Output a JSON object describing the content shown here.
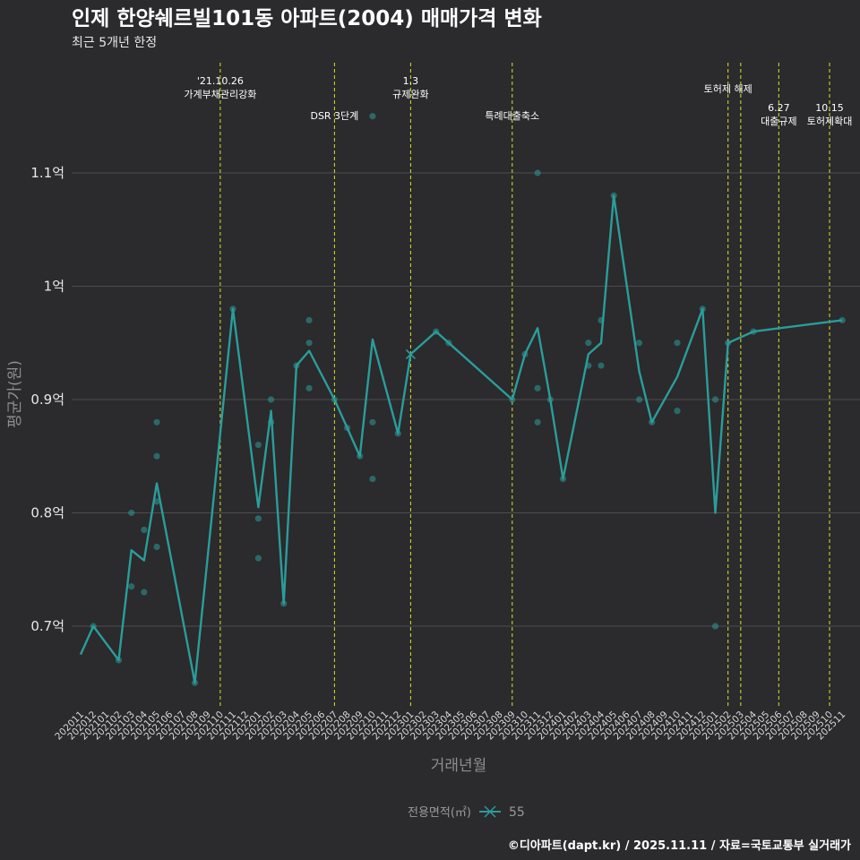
{
  "title": "인제 한양쉐르빌101동 아파트(2004) 매매가격 변화",
  "subtitle": "최근 5개년 한정",
  "caption": "©디아파트(dapt.kr) / 2025.11.11 / 자료=국토교통부 실거래가",
  "colors": {
    "background": "#2b2a2c",
    "series": "#2a9d9b",
    "event_line": "#c8d22a",
    "grid": "#4d4c4f"
  },
  "chart_data": {
    "type": "line",
    "title": "인제 한양쉐르빌101동 아파트(2004) 매매가격 변화",
    "xlabel": "거래년월",
    "ylabel": "평균가(원)",
    "ylim": [
      0.625,
      1.16
    ],
    "yunit": "억",
    "y_ticks": [
      0.7,
      0.8,
      0.9,
      1.0,
      1.1
    ],
    "y_tick_labels": [
      "0.7억",
      "0.8억",
      "0.9억",
      "1억",
      "1.1억"
    ],
    "x_ticks": [
      "202011",
      "202012",
      "202101",
      "202102",
      "202103",
      "202104",
      "202105",
      "202106",
      "202107",
      "202108",
      "202109",
      "202110",
      "202111",
      "202112",
      "202201",
      "202202",
      "202203",
      "202204",
      "202205",
      "202206",
      "202207",
      "202208",
      "202209",
      "202210",
      "202211",
      "202212",
      "202301",
      "202302",
      "202303",
      "202304",
      "202305",
      "202306",
      "202307",
      "202308",
      "202309",
      "202310",
      "202311",
      "202312",
      "202401",
      "202402",
      "202403",
      "202404",
      "202405",
      "202406",
      "202407",
      "202408",
      "202409",
      "202410",
      "202411",
      "202412",
      "202501",
      "202502",
      "202503",
      "202504",
      "202505",
      "202506",
      "202507",
      "202508",
      "202509",
      "202510",
      "202511"
    ],
    "legend": {
      "title": "전용면적(㎡)",
      "entries": [
        "55"
      ],
      "position": "bottom"
    },
    "series": [
      {
        "name": "55",
        "line": [
          [
            "202011",
            0.675
          ],
          [
            "202012",
            0.7
          ],
          [
            "202102",
            0.67
          ],
          [
            "202103",
            0.767
          ],
          [
            "202104",
            0.758
          ],
          [
            "202105",
            0.826
          ],
          [
            "202108",
            0.65
          ],
          [
            "202111",
            0.98
          ],
          [
            "202201",
            0.805
          ],
          [
            "202202",
            0.89
          ],
          [
            "202203",
            0.72
          ],
          [
            "202204",
            0.93
          ],
          [
            "202205",
            0.943
          ],
          [
            "202207",
            0.9
          ],
          [
            "202208",
            0.875
          ],
          [
            "202209",
            0.85
          ],
          [
            "202210",
            0.953
          ],
          [
            "202212",
            0.87
          ],
          [
            "202301",
            0.94
          ],
          [
            "202303",
            0.96
          ],
          [
            "202304",
            0.95
          ],
          [
            "202309",
            0.9
          ],
          [
            "202310",
            0.94
          ],
          [
            "202311",
            0.963
          ],
          [
            "202312",
            0.9
          ],
          [
            "202401",
            0.83
          ],
          [
            "202403",
            0.94
          ],
          [
            "202404",
            0.95
          ],
          [
            "202405",
            1.08
          ],
          [
            "202407",
            0.925
          ],
          [
            "202408",
            0.88
          ],
          [
            "202410",
            0.92
          ],
          [
            "202412",
            0.98
          ],
          [
            "202501",
            0.8
          ],
          [
            "202502",
            0.95
          ],
          [
            "202504",
            0.96
          ],
          [
            "202511",
            0.97
          ]
        ],
        "points": [
          [
            "202012",
            0.7
          ],
          [
            "202102",
            0.67
          ],
          [
            "202103",
            0.735
          ],
          [
            "202103",
            0.8
          ],
          [
            "202104",
            0.73
          ],
          [
            "202104",
            0.785
          ],
          [
            "202105",
            0.77
          ],
          [
            "202105",
            0.81
          ],
          [
            "202105",
            0.85
          ],
          [
            "202105",
            0.88
          ],
          [
            "202108",
            0.65
          ],
          [
            "202111",
            0.98
          ],
          [
            "202201",
            0.76
          ],
          [
            "202201",
            0.795
          ],
          [
            "202201",
            0.86
          ],
          [
            "202202",
            0.88
          ],
          [
            "202202",
            0.9
          ],
          [
            "202203",
            0.72
          ],
          [
            "202204",
            0.93
          ],
          [
            "202205",
            0.91
          ],
          [
            "202205",
            0.95
          ],
          [
            "202205",
            0.97
          ],
          [
            "202207",
            0.9
          ],
          [
            "202208",
            0.875
          ],
          [
            "202209",
            0.85
          ],
          [
            "202210",
            0.83
          ],
          [
            "202210",
            0.88
          ],
          [
            "202210",
            1.15
          ],
          [
            "202212",
            0.87
          ],
          [
            "202303",
            0.96
          ],
          [
            "202304",
            0.95
          ],
          [
            "202309",
            0.9
          ],
          [
            "202310",
            0.94
          ],
          [
            "202311",
            0.88
          ],
          [
            "202311",
            0.91
          ],
          [
            "202311",
            1.1
          ],
          [
            "202312",
            0.9
          ],
          [
            "202401",
            0.83
          ],
          [
            "202403",
            0.93
          ],
          [
            "202403",
            0.95
          ],
          [
            "202404",
            0.93
          ],
          [
            "202404",
            0.97
          ],
          [
            "202405",
            1.08
          ],
          [
            "202407",
            0.9
          ],
          [
            "202407",
            0.95
          ],
          [
            "202408",
            0.88
          ],
          [
            "202410",
            0.89
          ],
          [
            "202410",
            0.95
          ],
          [
            "202412",
            0.98
          ],
          [
            "202501",
            0.7
          ],
          [
            "202501",
            0.9
          ],
          [
            "202502",
            0.95
          ],
          [
            "202504",
            0.96
          ],
          [
            "202511",
            0.97
          ]
        ],
        "cross_marker": [
          "202301",
          0.94
        ]
      }
    ],
    "events": [
      {
        "x": "202110",
        "lines": [
          "'21.10.26",
          "가계부채관리강화"
        ],
        "row": 1
      },
      {
        "x": "202207",
        "lines": [
          "DSR 3단계"
        ],
        "row": 2
      },
      {
        "x": "202301",
        "lines": [
          "1.3",
          "규제완화"
        ],
        "row": 1
      },
      {
        "x": "202309",
        "lines": [
          "특례대출축소"
        ],
        "row": 2
      },
      {
        "x": "202502",
        "lines": [
          "토허제 해제"
        ],
        "row": 1
      },
      {
        "x": "202503",
        "lines": [],
        "row": 1
      },
      {
        "x": "202506",
        "lines": [
          "6.27",
          "대출규제"
        ],
        "row": 2
      },
      {
        "x": "202510",
        "lines": [
          "10.15",
          "토허제확대"
        ],
        "row": 2
      }
    ]
  }
}
